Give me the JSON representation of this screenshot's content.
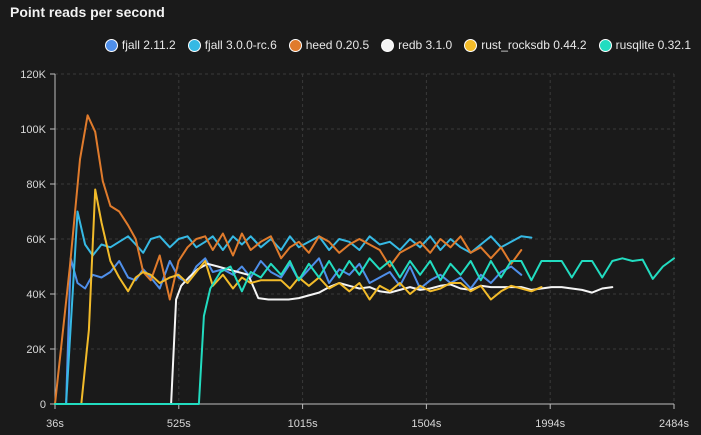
{
  "chart_data": {
    "type": "line",
    "title": "Point reads per second",
    "xlabel": "",
    "ylabel": "",
    "x_tick_labels": [
      "36s",
      "525s",
      "1015s",
      "1504s",
      "1994s",
      "2484s"
    ],
    "y_tick_labels": [
      "0",
      "20K",
      "40K",
      "60K",
      "80K",
      "100K",
      "120K"
    ],
    "xlim": [
      36,
      2484
    ],
    "ylim": [
      0,
      120000
    ],
    "legend_position": "top-right",
    "series": [
      {
        "name": "fjall 2.11.2",
        "color": "#4f8fea",
        "x": [
          36,
          80,
          98,
          125,
          155,
          185,
          220,
          255,
          290,
          325,
          355,
          385,
          415,
          450,
          490,
          525,
          560,
          595,
          630,
          660,
          700,
          740,
          775,
          810,
          850,
          890,
          930,
          965,
          1000,
          1040,
          1080,
          1120,
          1160,
          1200,
          1240,
          1280,
          1320,
          1360,
          1400,
          1440,
          1480,
          1520,
          1560,
          1600,
          1640,
          1680,
          1720,
          1760,
          1800,
          1840,
          1880
        ],
        "y": [
          0,
          0,
          53000,
          44000,
          42000,
          47000,
          46000,
          48000,
          52000,
          46000,
          45000,
          49000,
          46000,
          42000,
          52000,
          46000,
          44000,
          50000,
          53000,
          48000,
          49000,
          47000,
          50000,
          46000,
          52000,
          48000,
          46000,
          51000,
          45000,
          49000,
          53000,
          44000,
          49000,
          47000,
          51000,
          44000,
          46000,
          48000,
          43000,
          50000,
          42000,
          45000,
          47000,
          44000,
          46000,
          42000,
          47000,
          44000,
          48000,
          50000,
          47000
        ]
      },
      {
        "name": "fjall 3.0.0-rc.6",
        "color": "#36b9e4",
        "x": [
          36,
          80,
          125,
          155,
          185,
          220,
          255,
          290,
          325,
          355,
          385,
          415,
          450,
          490,
          525,
          560,
          595,
          630,
          660,
          700,
          740,
          775,
          810,
          850,
          890,
          930,
          965,
          1000,
          1040,
          1080,
          1120,
          1160,
          1200,
          1240,
          1280,
          1320,
          1360,
          1400,
          1440,
          1480,
          1520,
          1560,
          1600,
          1640,
          1680,
          1720,
          1760,
          1800,
          1840,
          1880,
          1920
        ],
        "y": [
          0,
          0,
          70000,
          58000,
          54000,
          58000,
          57000,
          59000,
          61000,
          58000,
          55000,
          60000,
          61000,
          57000,
          60000,
          61000,
          57000,
          59000,
          61000,
          56000,
          61000,
          58000,
          61000,
          57000,
          60000,
          56000,
          61000,
          57000,
          59000,
          61000,
          56000,
          60000,
          59000,
          56000,
          61000,
          58000,
          59000,
          56000,
          60000,
          57000,
          61000,
          56000,
          60000,
          57000,
          55000,
          58000,
          61000,
          57000,
          59000,
          61000,
          60500
        ]
      },
      {
        "name": "heed 0.20.5",
        "color": "#e07b2c",
        "x": [
          36,
          95,
          135,
          165,
          195,
          225,
          255,
          290,
          325,
          355,
          385,
          415,
          450,
          490,
          525,
          560,
          595,
          630,
          660,
          700,
          740,
          775,
          810,
          850,
          890,
          930,
          965,
          1000,
          1040,
          1080,
          1120,
          1160,
          1200,
          1240,
          1280,
          1320,
          1360,
          1400,
          1440,
          1480,
          1520,
          1560,
          1600,
          1640,
          1680,
          1720,
          1760,
          1800,
          1840,
          1880
        ],
        "y": [
          0,
          50000,
          89000,
          105000,
          99000,
          81000,
          72000,
          70000,
          65000,
          60000,
          48000,
          45000,
          54000,
          38000,
          52000,
          57000,
          60000,
          61000,
          56000,
          62000,
          54000,
          62000,
          56000,
          59000,
          61000,
          53000,
          57000,
          59000,
          55000,
          61000,
          59000,
          55000,
          58000,
          60000,
          58000,
          56000,
          50000,
          55000,
          57000,
          59000,
          55000,
          60000,
          57000,
          61000,
          55000,
          57000,
          53000,
          57000,
          51000,
          56000
        ]
      },
      {
        "name": "redb 3.1.0",
        "color": "#f5f5f5",
        "x": [
          36,
          495,
          515,
          535,
          565,
          600,
          640,
          680,
          720,
          760,
          800,
          840,
          880,
          920,
          960,
          1000,
          1040,
          1080,
          1120,
          1160,
          1200,
          1240,
          1280,
          1320,
          1360,
          1400,
          1440,
          1480,
          1520,
          1560,
          1600,
          1640,
          1680,
          1720,
          1760,
          1800,
          1840,
          1880,
          1920,
          1960,
          2000,
          2040,
          2080,
          2120,
          2160,
          2200,
          2240
        ],
        "y": [
          0,
          0,
          38000,
          43000,
          46000,
          49000,
          51000,
          50000,
          49000,
          48000,
          47000,
          38500,
          38000,
          38000,
          38000,
          38500,
          39500,
          40500,
          42500,
          44000,
          43000,
          42000,
          42500,
          41000,
          40500,
          41500,
          42500,
          41500,
          42000,
          43000,
          43500,
          42000,
          41500,
          43000,
          42500,
          42500,
          42500,
          42500,
          41500,
          42000,
          42500,
          42500,
          42000,
          41500,
          40500,
          42000,
          42500
        ]
      },
      {
        "name": "rust_rocksdb 0.44.2",
        "color": "#f2bb2a",
        "x": [
          36,
          140,
          170,
          195,
          220,
          255,
          290,
          325,
          355,
          385,
          415,
          450,
          490,
          525,
          560,
          595,
          630,
          660,
          700,
          740,
          775,
          810,
          850,
          890,
          930,
          965,
          1000,
          1040,
          1080,
          1120,
          1160,
          1200,
          1240,
          1280,
          1320,
          1360,
          1400,
          1440,
          1480,
          1520,
          1560,
          1600,
          1640,
          1680,
          1720,
          1760,
          1800,
          1840,
          1880,
          1920,
          1960
        ],
        "y": [
          0,
          0,
          27000,
          78000,
          66000,
          52000,
          46000,
          41000,
          46000,
          48000,
          47000,
          44000,
          46000,
          47000,
          44000,
          48000,
          52000,
          43000,
          47000,
          42000,
          46000,
          44000,
          45000,
          45000,
          45000,
          42000,
          46000,
          43000,
          46000,
          42000,
          44000,
          41000,
          44000,
          38000,
          43000,
          41000,
          44000,
          40000,
          43000,
          41000,
          42000,
          44000,
          44000,
          41000,
          43000,
          38000,
          41000,
          43000,
          42000,
          41000,
          42500
        ]
      },
      {
        "name": "rusqlite 0.32.1",
        "color": "#22dcc0",
        "x": [
          36,
          605,
          625,
          650,
          690,
          730,
          775,
          810,
          850,
          890,
          930,
          965,
          1000,
          1040,
          1080,
          1120,
          1160,
          1200,
          1240,
          1280,
          1320,
          1360,
          1400,
          1440,
          1480,
          1520,
          1560,
          1600,
          1640,
          1680,
          1720,
          1760,
          1800,
          1840,
          1880,
          1920,
          1960,
          2000,
          2040,
          2080,
          2120,
          2160,
          2200,
          2240,
          2280,
          2320,
          2360,
          2400,
          2440,
          2484
        ],
        "y": [
          0,
          0,
          32000,
          42000,
          48000,
          50000,
          41000,
          48000,
          46000,
          51000,
          47000,
          52000,
          45000,
          51000,
          46000,
          52000,
          46000,
          52000,
          47000,
          53000,
          49000,
          52000,
          46000,
          52000,
          47000,
          52000,
          45000,
          51000,
          47000,
          52000,
          45000,
          52000,
          46000,
          52000,
          52000,
          45000,
          52000,
          52000,
          52000,
          46000,
          52000,
          52000,
          46000,
          52000,
          53000,
          52000,
          52500,
          45500,
          50000,
          53000
        ]
      }
    ]
  }
}
